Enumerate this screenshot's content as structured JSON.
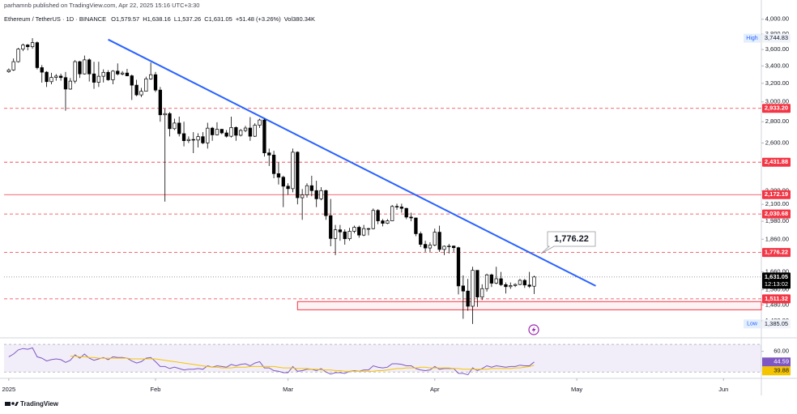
{
  "chart_data": {
    "type": "candlestick",
    "credit": "parhamnb published on TradingView.com, Apr 22, 2025 15:16 UTC+3:30",
    "title": "Ethereum / TetherUS · 1D · BINANCE",
    "legend": [
      "O1,579.57",
      "H1,638.16",
      "L1,537.26",
      "C1,631.05",
      "+51.48 (+3.26%)",
      "Vol380.34K"
    ],
    "log_scale": true,
    "grid": false,
    "up_color": "#ffffff",
    "down_color": "#000000",
    "xlim": [
      -1,
      159
    ],
    "xticks": [
      {
        "value": 0,
        "label": "2025"
      },
      {
        "value": 31,
        "label": "Feb"
      },
      {
        "value": 59,
        "label": "Mar"
      },
      {
        "value": 90,
        "label": "Apr"
      },
      {
        "value": 120,
        "label": "May"
      },
      {
        "value": 151,
        "label": "Jun"
      }
    ],
    "ylim": [
      1327,
      4100
    ],
    "yticks": [
      {
        "value": 1400,
        "label": "1,400.00"
      },
      {
        "value": 1480,
        "label": "1,480.00"
      },
      {
        "value": 1560,
        "label": "1,560.00"
      },
      {
        "value": 1660,
        "label": "1,660.00"
      },
      {
        "value": 1860,
        "label": "1,860.00"
      },
      {
        "value": 1980,
        "label": "1,980.00"
      },
      {
        "value": 2100,
        "label": "2,100.00"
      },
      {
        "value": 2200,
        "label": "2,200.00"
      },
      {
        "value": 2600,
        "label": "2,600.00"
      },
      {
        "value": 2800,
        "label": "2,800.00"
      },
      {
        "value": 3000,
        "label": "3,000.00"
      },
      {
        "value": 3200,
        "label": "3,200.00"
      },
      {
        "value": 3400,
        "label": "3,400.00"
      },
      {
        "value": 3600,
        "label": "3,600.00"
      },
      {
        "value": 3800,
        "label": "3,800.00"
      },
      {
        "value": 4000,
        "label": "4,000.00"
      }
    ],
    "ohlc": [
      [
        3332,
        3370,
        3320,
        3353
      ],
      [
        3353,
        3490,
        3342,
        3451
      ],
      [
        3451,
        3620,
        3440,
        3605
      ],
      [
        3605,
        3675,
        3580,
        3657
      ],
      [
        3657,
        3670,
        3590,
        3635
      ],
      [
        3635,
        3744.83,
        3610,
        3687
      ],
      [
        3687,
        3702,
        3360,
        3380
      ],
      [
        3380,
        3410,
        3208,
        3327
      ],
      [
        3327,
        3340,
        3160,
        3219
      ],
      [
        3219,
        3320,
        3190,
        3267
      ],
      [
        3267,
        3305,
        3230,
        3282
      ],
      [
        3282,
        3310,
        3230,
        3265
      ],
      [
        3265,
        3330,
        2910,
        3137
      ],
      [
        3137,
        3260,
        3130,
        3225
      ],
      [
        3225,
        3470,
        3200,
        3451
      ],
      [
        3451,
        3460,
        3260,
        3307
      ],
      [
        3307,
        3525,
        3300,
        3473
      ],
      [
        3473,
        3490,
        3220,
        3307
      ],
      [
        3307,
        3450,
        3140,
        3212
      ],
      [
        3212,
        3450,
        3160,
        3280
      ],
      [
        3280,
        3360,
        3210,
        3325
      ],
      [
        3325,
        3350,
        3230,
        3240
      ],
      [
        3240,
        3350,
        3190,
        3339
      ],
      [
        3339,
        3430,
        3290,
        3306
      ],
      [
        3306,
        3340,
        3290,
        3317
      ],
      [
        3317,
        3365,
        3280,
        3285
      ],
      [
        3285,
        3300,
        3020,
        3180
      ],
      [
        3180,
        3240,
        3060,
        3074
      ],
      [
        3074,
        3150,
        3050,
        3113
      ],
      [
        3113,
        3275,
        3110,
        3250
      ],
      [
        3250,
        3440,
        3240,
        3298
      ],
      [
        3298,
        3330,
        3105,
        3126
      ],
      [
        3126,
        3160,
        2800,
        2868
      ],
      [
        2868,
        2930,
        2120,
        2880
      ],
      [
        2880,
        2895,
        2660,
        2733
      ],
      [
        2733,
        2830,
        2720,
        2787
      ],
      [
        2787,
        2850,
        2660,
        2686
      ],
      [
        2686,
        2800,
        2570,
        2621
      ],
      [
        2621,
        2660,
        2600,
        2632
      ],
      [
        2632,
        2700,
        2510,
        2627
      ],
      [
        2627,
        2690,
        2560,
        2658
      ],
      [
        2658,
        2700,
        2590,
        2601
      ],
      [
        2601,
        2790,
        2550,
        2738
      ],
      [
        2738,
        2750,
        2620,
        2675
      ],
      [
        2675,
        2795,
        2670,
        2727
      ],
      [
        2727,
        2730,
        2680,
        2693
      ],
      [
        2693,
        2720,
        2650,
        2662
      ],
      [
        2662,
        2850,
        2650,
        2744
      ],
      [
        2744,
        2755,
        2620,
        2671
      ],
      [
        2671,
        2730,
        2660,
        2716
      ],
      [
        2716,
        2760,
        2700,
        2739
      ],
      [
        2739,
        2845,
        2620,
        2662
      ],
      [
        2662,
        2785,
        2655,
        2766
      ],
      [
        2766,
        2830,
        2740,
        2817
      ],
      [
        2817,
        2830,
        2480,
        2512
      ],
      [
        2512,
        2550,
        2400,
        2493
      ],
      [
        2493,
        2530,
        2300,
        2337
      ],
      [
        2337,
        2430,
        2250,
        2308
      ],
      [
        2308,
        2320,
        2080,
        2237
      ],
      [
        2237,
        2260,
        2170,
        2218
      ],
      [
        2218,
        2550,
        2190,
        2518
      ],
      [
        2518,
        2525,
        2100,
        2149
      ],
      [
        2149,
        2215,
        1990,
        2171
      ],
      [
        2171,
        2260,
        2150,
        2241
      ],
      [
        2241,
        2320,
        2160,
        2203
      ],
      [
        2203,
        2280,
        2080,
        2141
      ],
      [
        2141,
        2230,
        2130,
        2203
      ],
      [
        2203,
        2210,
        1990,
        2019
      ],
      [
        2019,
        2140,
        1815,
        1865
      ],
      [
        1865,
        1955,
        1760,
        1922
      ],
      [
        1922,
        1955,
        1850,
        1908
      ],
      [
        1908,
        1925,
        1825,
        1863
      ],
      [
        1863,
        1935,
        1850,
        1912
      ],
      [
        1912,
        1950,
        1900,
        1939
      ],
      [
        1939,
        1950,
        1870,
        1887
      ],
      [
        1887,
        1955,
        1880,
        1930
      ],
      [
        1930,
        1935,
        1885,
        1930
      ],
      [
        1930,
        2070,
        1925,
        2056
      ],
      [
        2056,
        2065,
        1960,
        1983
      ],
      [
        1983,
        1995,
        1945,
        1966
      ],
      [
        1966,
        1995,
        1960,
        1983
      ],
      [
        1983,
        2095,
        1980,
        2085
      ],
      [
        2085,
        2105,
        2060,
        2081
      ],
      [
        2081,
        2105,
        2040,
        2071
      ],
      [
        2071,
        2075,
        1995,
        2009
      ],
      [
        2009,
        2040,
        1980,
        2003
      ],
      [
        2003,
        2005,
        1880,
        1896
      ],
      [
        1896,
        1910,
        1810,
        1827
      ],
      [
        1827,
        1850,
        1780,
        1804
      ],
      [
        1804,
        1840,
        1780,
        1822
      ],
      [
        1822,
        1930,
        1815,
        1906
      ],
      [
        1906,
        1950,
        1780,
        1795
      ],
      [
        1795,
        1820,
        1760,
        1815
      ],
      [
        1815,
        1830,
        1770,
        1816
      ],
      [
        1816,
        1820,
        1780,
        1806
      ],
      [
        1806,
        1812,
        1535,
        1581
      ],
      [
        1581,
        1640,
        1410,
        1553
      ],
      [
        1553,
        1620,
        1450,
        1473
      ],
      [
        1473,
        1690,
        1385.05,
        1669
      ],
      [
        1669,
        1670,
        1470,
        1521
      ],
      [
        1521,
        1590,
        1505,
        1566
      ],
      [
        1566,
        1650,
        1550,
        1643
      ],
      [
        1643,
        1650,
        1575,
        1596
      ],
      [
        1596,
        1690,
        1590,
        1621
      ],
      [
        1621,
        1660,
        1580,
        1588
      ],
      [
        1588,
        1600,
        1540,
        1577
      ],
      [
        1577,
        1600,
        1565,
        1583
      ],
      [
        1583,
        1595,
        1575,
        1589
      ],
      [
        1589,
        1620,
        1585,
        1612
      ],
      [
        1612,
        1620,
        1570,
        1586
      ],
      [
        1586,
        1660,
        1570,
        1579
      ],
      [
        1579.57,
        1638.16,
        1537.26,
        1631.05
      ]
    ],
    "levels": [
      {
        "value": 2933.2,
        "label": "2,933.20",
        "style": "dashed",
        "color": "#f23645"
      },
      {
        "value": 2431.88,
        "label": "2,431.88",
        "style": "dashed",
        "color": "#f23645"
      },
      {
        "value": 2172.19,
        "label": "2,172.19",
        "style": "solid",
        "color": "#f23645"
      },
      {
        "value": 2030.68,
        "label": "2,030.68",
        "style": "dashed",
        "color": "#f23645"
      },
      {
        "value": 1776.22,
        "label": "1,776.22",
        "style": "dashed",
        "color": "#f23645"
      },
      {
        "value": 1511.32,
        "label": "1,511.32",
        "style": "dashed",
        "color": "#f23645"
      }
    ],
    "zone": {
      "x0": 61,
      "values": [
        1497,
        1455
      ],
      "color": "#f23645"
    },
    "trendline": {
      "x": [
        21,
        124
      ],
      "values": [
        3727,
        1581
      ],
      "color": "#2962ff"
    },
    "annotation": "1,776.22",
    "markers": [
      {
        "name": "High",
        "value": 3744.83,
        "label": "3,744.83"
      },
      {
        "name": "Low",
        "value": 1385.05,
        "label": "1,385.05"
      }
    ],
    "last": {
      "value": 1631.05,
      "label": "1,631.05",
      "countdown": "12:13:02"
    },
    "rsi": {
      "ylim": [
        22,
        76
      ],
      "yticks": [
        {
          "value": 60,
          "label": "60.00"
        }
      ],
      "band": [
        30,
        70
      ],
      "series": [
        {
          "color": "#7e57c2",
          "values": [
            52,
            56,
            62,
            64,
            63,
            65,
            52,
            50,
            46,
            48,
            49,
            48,
            44,
            47,
            55,
            50,
            56,
            50,
            47,
            49,
            51,
            48,
            52,
            51,
            51,
            50,
            46,
            43,
            45,
            50,
            51,
            45,
            38,
            38,
            35,
            37,
            35,
            33,
            34,
            34,
            35,
            34,
            39,
            37,
            39,
            38,
            37,
            41,
            39,
            41,
            42,
            39,
            43,
            45,
            36,
            36,
            32,
            31,
            29,
            29,
            38,
            31,
            32,
            34,
            34,
            32,
            35,
            30,
            27,
            29,
            29,
            28,
            31,
            32,
            31,
            33,
            33,
            39,
            37,
            36,
            37,
            42,
            42,
            41,
            39,
            39,
            35,
            33,
            32,
            33,
            38,
            34,
            35,
            35,
            35,
            28,
            28,
            26,
            36,
            32,
            35,
            39,
            37,
            39,
            38,
            37,
            38,
            38,
            40,
            39,
            39,
            44.59
          ]
        },
        {
          "color": "#f5c400",
          "values": [
            null,
            null,
            null,
            null,
            null,
            null,
            null,
            null,
            null,
            null,
            null,
            null,
            null,
            53,
            53,
            52,
            52,
            51,
            51,
            50,
            50,
            50,
            50,
            50,
            50,
            50,
            49,
            49,
            49,
            49,
            49,
            49,
            48,
            47,
            46,
            45,
            44,
            43,
            42,
            41,
            40,
            39,
            38,
            37,
            37,
            36,
            36,
            36,
            37,
            37,
            37,
            38,
            38,
            38,
            38,
            38,
            38,
            37,
            36,
            36,
            36,
            35,
            35,
            35,
            34,
            34,
            33,
            33,
            33,
            32,
            32,
            31,
            31,
            31,
            31,
            31,
            31,
            31,
            32,
            32,
            33,
            34,
            35,
            35,
            36,
            36,
            36,
            37,
            37,
            36,
            36,
            36,
            36,
            36,
            35,
            35,
            34,
            34,
            34,
            34,
            34,
            34,
            35,
            35,
            35,
            35,
            35,
            36,
            36,
            37,
            38,
            39.88
          ]
        }
      ]
    }
  },
  "footer": "TradingView"
}
